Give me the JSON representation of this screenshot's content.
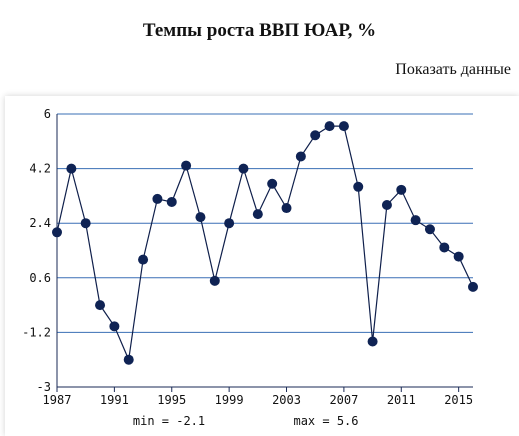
{
  "page": {
    "title": "Темпы роста ВВП ЮАР, %",
    "show_data_label": "Показать данные"
  },
  "colors": {
    "line": "#0f1f4b",
    "marker": "#0f2354",
    "grid": "#3a6fb5",
    "axis": "#1a2a55"
  },
  "chart_data": {
    "type": "line",
    "title": "Темпы роста ВВП ЮАР, %",
    "xlabel": "",
    "ylabel": "",
    "xlim": [
      1987,
      2016
    ],
    "ylim": [
      -3,
      6
    ],
    "yticks": [
      6,
      4.2,
      2.4,
      0.6,
      -1.2,
      -3
    ],
    "ytick_labels": [
      "6",
      "4.2",
      "2.4",
      "0.6",
      "-1.2",
      "-3"
    ],
    "xticks": [
      1987,
      1991,
      1995,
      1999,
      2003,
      2007,
      2011,
      2015
    ],
    "xtick_labels": [
      "1987",
      "1991",
      "1995",
      "1999",
      "2003",
      "2007",
      "2011",
      "2015"
    ],
    "grid": true,
    "series": [
      {
        "x": [
          1987,
          1988,
          1989,
          1990,
          1991,
          1992,
          1993,
          1994,
          1995,
          1996,
          1997,
          1998,
          1999,
          2000,
          2001,
          2002,
          2003,
          2004,
          2005,
          2006,
          2007,
          2008,
          2009,
          2010,
          2011,
          2012,
          2013,
          2014,
          2015,
          2016
        ],
        "y": [
          2.1,
          4.2,
          2.4,
          -0.3,
          -1.0,
          -2.1,
          1.2,
          3.2,
          3.1,
          4.3,
          2.6,
          0.5,
          2.4,
          4.2,
          2.7,
          3.7,
          2.9,
          4.6,
          5.3,
          5.6,
          5.6,
          3.6,
          -1.5,
          3.0,
          3.5,
          2.5,
          2.2,
          1.6,
          1.3,
          0.3
        ]
      }
    ],
    "annotations": {
      "min_label": "min = -2.1",
      "max_label": "max = 5.6"
    }
  }
}
